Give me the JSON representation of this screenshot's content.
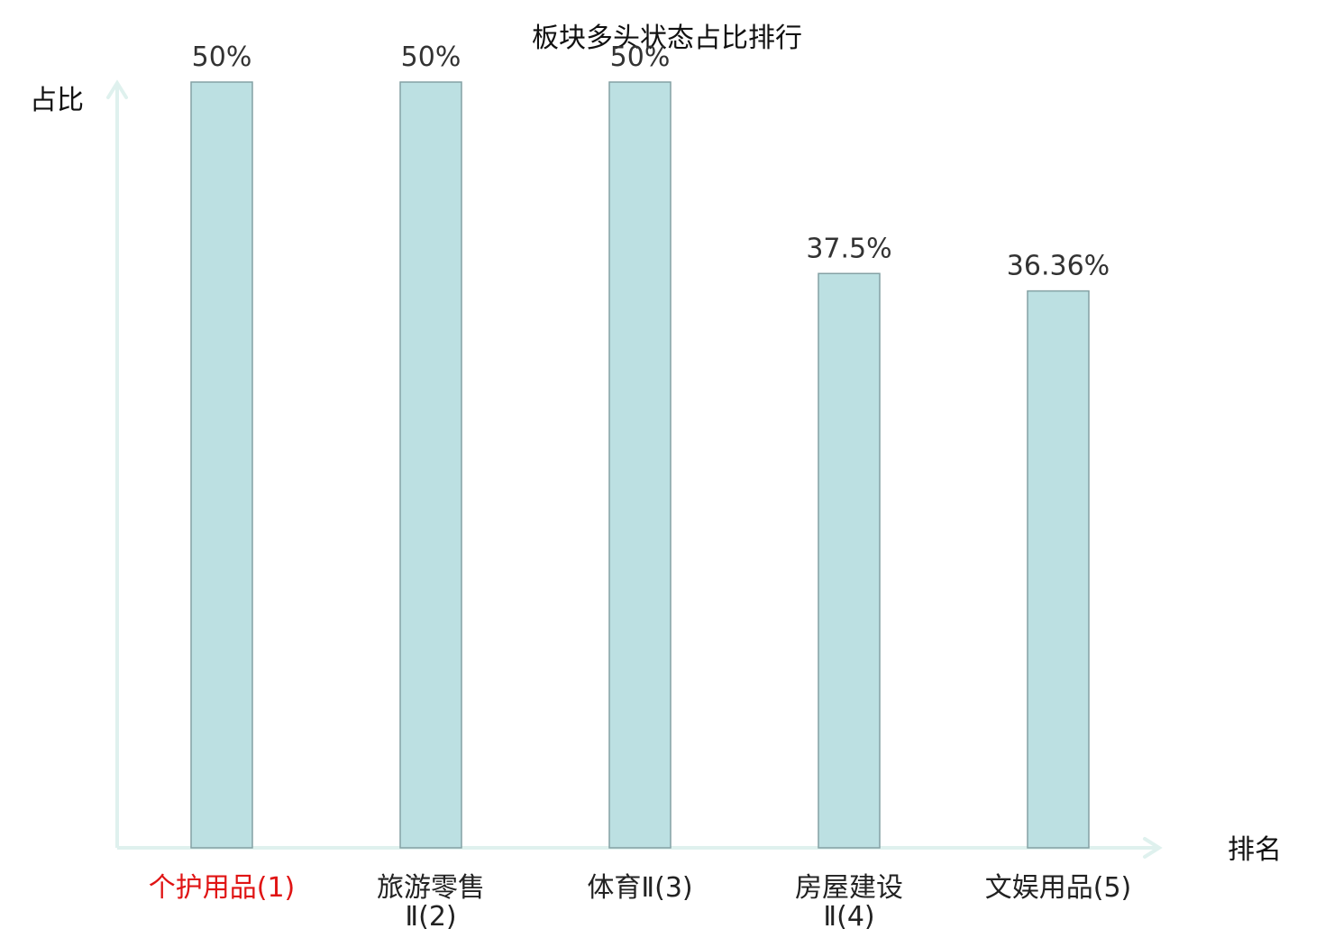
{
  "chart_data": {
    "type": "bar",
    "title": "板块多头状态占比排行",
    "ylabel": "占比",
    "xlabel": "排名",
    "categories": [
      [
        "个护用品(1)"
      ],
      [
        "旅游零售",
        "Ⅱ(2)"
      ],
      [
        "体育Ⅱ(3)"
      ],
      [
        "房屋建设",
        "Ⅱ(4)"
      ],
      [
        "文娱用品(5)"
      ]
    ],
    "values": [
      50,
      50,
      50,
      37.5,
      36.36
    ],
    "value_labels": [
      "50%",
      "50%",
      "50%",
      "37.5%",
      "36.36%"
    ],
    "highlight_index": 0,
    "ylim": [
      0,
      50
    ],
    "grid": false,
    "legend": "none",
    "colors": {
      "bar_fill": "#bce0e2",
      "bar_stroke": "#84a1a4",
      "axis": "#dff1ee",
      "highlight_label": "#e01414",
      "label": "#222222"
    }
  }
}
